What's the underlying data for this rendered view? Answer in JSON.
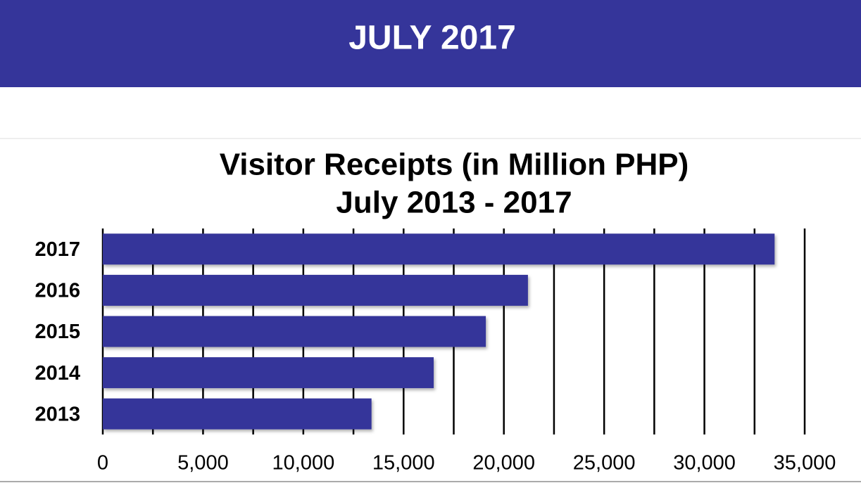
{
  "header": {
    "title": "JULY 2017"
  },
  "chart_data": {
    "type": "bar",
    "orientation": "horizontal",
    "title": "Visitor Receipts (in Million PHP)",
    "subtitle": "July 2013 - 2017",
    "categories": [
      "2017",
      "2016",
      "2015",
      "2014",
      "2013"
    ],
    "values": [
      33500,
      21200,
      19100,
      16500,
      13400
    ],
    "color": "#35359a",
    "xlim": [
      0,
      35000
    ],
    "xticks": [
      0,
      {
        "value": 5000,
        "label": "5,000"
      },
      {
        "value": 10000,
        "label": "10,000"
      },
      {
        "value": 15000,
        "label": "15,000"
      },
      {
        "value": 20000,
        "label": "20,000"
      },
      {
        "value": 25000,
        "label": "25,000"
      },
      {
        "value": 30000,
        "label": "30,000"
      },
      {
        "value": 35000,
        "label": "35,000"
      }
    ],
    "xminor_ticks": [
      2500,
      7500,
      12500,
      17500,
      22500,
      27500,
      32500
    ],
    "grid": true
  }
}
